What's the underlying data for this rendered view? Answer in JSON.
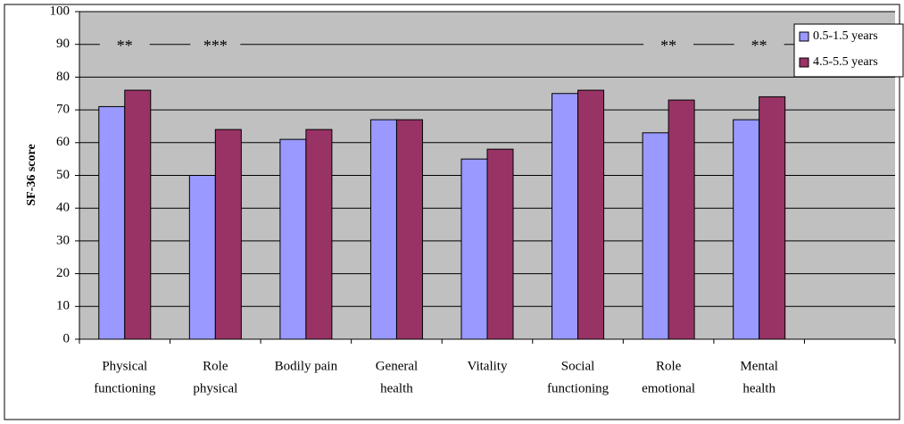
{
  "chart_data": {
    "type": "bar",
    "y_label": "SF-36 score",
    "categories": [
      [
        "Physical",
        "functioning"
      ],
      [
        "Role",
        "physical"
      ],
      [
        "Bodily pain"
      ],
      [
        "General",
        "health"
      ],
      [
        "Vitality"
      ],
      [
        "Social",
        "functioning"
      ],
      [
        "Role",
        "emotional"
      ],
      [
        "Mental",
        "health"
      ],
      null
    ],
    "significance": [
      "**",
      "***",
      null,
      null,
      null,
      null,
      "**",
      "**",
      null
    ],
    "series": [
      {
        "name": "0.5-1.5 years",
        "color": "#9999ff",
        "values": [
          71,
          50,
          61,
          67,
          55,
          75,
          63,
          67,
          null
        ]
      },
      {
        "name": "4.5-5.5 years",
        "color": "#993366",
        "values": [
          76,
          64,
          64,
          67,
          58,
          76,
          73,
          74,
          null
        ]
      }
    ],
    "ylim": [
      0,
      100
    ],
    "yticks": [
      0,
      10,
      20,
      30,
      40,
      50,
      60,
      70,
      80,
      90,
      100
    ],
    "grid": true,
    "legend": "top-right"
  }
}
